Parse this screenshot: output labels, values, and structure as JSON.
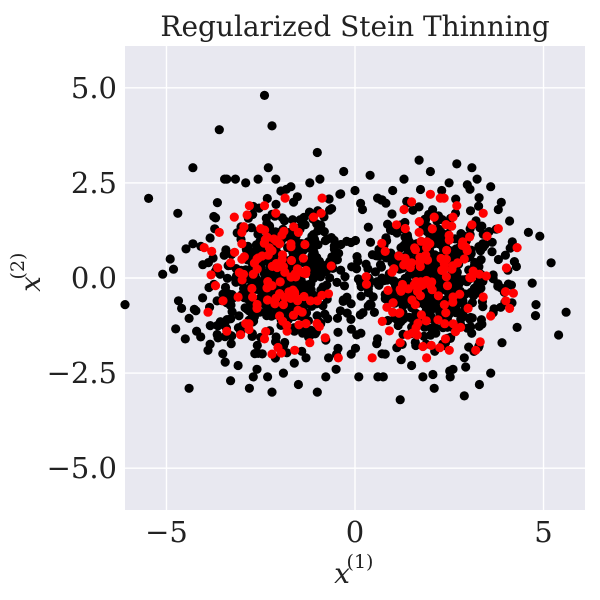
{
  "chart_data": {
    "type": "scatter",
    "title": "Regularized Stein Thinning",
    "xlabel": "x",
    "xlabel_sup": "(1)",
    "ylabel": "x",
    "ylabel_sup": "(2)",
    "xlim": [
      -6.1,
      6.1
    ],
    "ylim": [
      -6.1,
      6.1
    ],
    "xticks": [
      {
        "value": -5,
        "label": "−5"
      },
      {
        "value": 0,
        "label": "0"
      },
      {
        "value": 5,
        "label": "5"
      }
    ],
    "yticks": [
      {
        "value": 5.0,
        "label": "5.0"
      },
      {
        "value": 2.5,
        "label": "2.5"
      },
      {
        "value": 0.0,
        "label": "0.0"
      },
      {
        "value": -2.5,
        "label": "−2.5"
      },
      {
        "value": -5.0,
        "label": "−5.0"
      }
    ],
    "grid": true,
    "background_color": "#e8e8f0",
    "grid_color": "#ffffff",
    "series": [
      {
        "color": "#000000",
        "description_count": "approx 1100 samples",
        "points": [
          [
            -6.1,
            -0.7
          ],
          [
            -5.1,
            0.1
          ],
          [
            -4.9,
            0.5
          ],
          [
            -4.7,
            1.7
          ],
          [
            -4.6,
            -0.8
          ],
          [
            -4.5,
            -1.6
          ],
          [
            -4.4,
            -2.9
          ],
          [
            -4.3,
            2.9
          ],
          [
            -4.3,
            0.9
          ],
          [
            -4.2,
            -1.4
          ],
          [
            -3.9,
            -1.9
          ],
          [
            -3.6,
            3.9
          ],
          [
            -3.4,
            2.6
          ],
          [
            -3.3,
            -2.7
          ],
          [
            -3.1,
            -2.3
          ],
          [
            -2.9,
            2.5
          ],
          [
            -2.8,
            -2.9
          ],
          [
            -2.6,
            -2.4
          ],
          [
            -2.4,
            4.8
          ],
          [
            -2.3,
            2.9
          ],
          [
            -2.2,
            -3.0
          ],
          [
            -2.2,
            4.0
          ],
          [
            -2.1,
            2.6
          ],
          [
            -1.9,
            -2.5
          ],
          [
            -1.7,
            2.4
          ],
          [
            -1.5,
            -2.8
          ],
          [
            -1.3,
            -2.1
          ],
          [
            -1.2,
            2.5
          ],
          [
            -1.0,
            3.3
          ],
          [
            -1.0,
            -3.0
          ],
          [
            -0.7,
            -2.1
          ],
          [
            -0.5,
            -2.4
          ],
          [
            -0.4,
            2.2
          ],
          [
            -0.3,
            2.8
          ],
          [
            -0.1,
            -2.0
          ],
          [
            0.0,
            2.3
          ],
          [
            0.1,
            -2.6
          ],
          [
            0.2,
            1.8
          ],
          [
            0.4,
            2.7
          ],
          [
            0.6,
            2.1
          ],
          [
            0.6,
            -1.6
          ],
          [
            0.8,
            -2.0
          ],
          [
            1.0,
            2.3
          ],
          [
            1.2,
            -3.2
          ],
          [
            1.3,
            2.6
          ],
          [
            1.5,
            -2.3
          ],
          [
            1.7,
            3.1
          ],
          [
            1.8,
            -2.6
          ],
          [
            2.0,
            2.8
          ],
          [
            2.1,
            -2.9
          ],
          [
            2.3,
            2.3
          ],
          [
            2.6,
            -2.4
          ],
          [
            2.7,
            3.0
          ],
          [
            2.9,
            -3.1
          ],
          [
            3.1,
            2.9
          ],
          [
            3.3,
            -2.8
          ],
          [
            3.6,
            2.4
          ],
          [
            3.6,
            -2.5
          ],
          [
            3.8,
            1.8
          ],
          [
            3.9,
            -1.7
          ],
          [
            4.1,
            1.5
          ],
          [
            4.3,
            -1.3
          ],
          [
            4.6,
            1.2
          ],
          [
            4.8,
            -0.7
          ],
          [
            4.9,
            1.1
          ],
          [
            5.2,
            0.4
          ],
          [
            5.4,
            -1.5
          ],
          [
            5.6,
            -0.9
          ]
        ]
      },
      {
        "color": "#ff0000",
        "description_count": "approx 300 selected points",
        "points": [
          [
            -4.0,
            0.8
          ],
          [
            -3.9,
            -0.9
          ],
          [
            -3.8,
            0.7
          ],
          [
            -3.7,
            -0.2
          ],
          [
            -3.6,
            1.2
          ],
          [
            -3.4,
            -1.4
          ],
          [
            -3.3,
            0.4
          ],
          [
            -3.2,
            1.6
          ],
          [
            -3.1,
            -0.5
          ],
          [
            -3.0,
            0.9
          ],
          [
            -2.9,
            -1.2
          ],
          [
            -2.8,
            1.9
          ],
          [
            -2.7,
            0.1
          ],
          [
            -2.6,
            -0.8
          ],
          [
            -2.5,
            1.3
          ],
          [
            -2.4,
            -1.6
          ],
          [
            -2.3,
            0.6
          ],
          [
            -2.2,
            -0.2
          ],
          [
            -2.1,
            1.7
          ],
          [
            -2.0,
            -1.0
          ],
          [
            -1.9,
            0.3
          ],
          [
            -1.8,
            -1.4
          ],
          [
            -1.7,
            0.9
          ],
          [
            -1.6,
            -0.4
          ],
          [
            -1.5,
            1.2
          ],
          [
            -1.4,
            -0.9
          ],
          [
            -1.3,
            0.2
          ],
          [
            -1.2,
            -1.7
          ],
          [
            -1.1,
            1.6
          ],
          [
            -1.0,
            -0.6
          ],
          [
            -2.2,
            -2.0
          ],
          [
            -1.6,
            -1.9
          ],
          [
            -2.4,
            1.9
          ],
          [
            -3.0,
            1.2
          ],
          [
            -0.9,
            1.7
          ],
          [
            -2.6,
            0.5
          ],
          [
            -1.9,
            -0.7
          ],
          [
            -3.5,
            -0.6
          ],
          [
            -2.0,
            0.9
          ],
          [
            -1.3,
            -1.2
          ],
          [
            0.8,
            0.7
          ],
          [
            1.0,
            -0.9
          ],
          [
            1.1,
            1.4
          ],
          [
            1.2,
            -0.3
          ],
          [
            1.3,
            1.8
          ],
          [
            1.4,
            -1.5
          ],
          [
            1.5,
            0.4
          ],
          [
            1.6,
            -0.7
          ],
          [
            1.7,
            1.2
          ],
          [
            1.8,
            -1.8
          ],
          [
            1.9,
            0.8
          ],
          [
            2.0,
            -0.2
          ],
          [
            2.1,
            1.6
          ],
          [
            2.2,
            -1.1
          ],
          [
            2.3,
            0.2
          ],
          [
            2.4,
            -1.6
          ],
          [
            2.5,
            1.0
          ],
          [
            2.6,
            -0.5
          ],
          [
            2.7,
            1.9
          ],
          [
            2.8,
            -1.3
          ],
          [
            2.9,
            0.5
          ],
          [
            3.0,
            -0.8
          ],
          [
            3.1,
            1.4
          ],
          [
            3.2,
            -1.9
          ],
          [
            3.3,
            0.1
          ],
          [
            3.4,
            -0.5
          ],
          [
            3.5,
            1.1
          ],
          [
            3.6,
            -1.0
          ],
          [
            3.8,
            1.3
          ],
          [
            4.0,
            -0.6
          ],
          [
            4.2,
            -0.4
          ],
          [
            4.3,
            0.8
          ],
          [
            4.1,
            -0.8
          ],
          [
            1.9,
            -2.1
          ],
          [
            2.5,
            -1.9
          ],
          [
            1.5,
            2.0
          ],
          [
            2.0,
            2.2
          ],
          [
            3.4,
            1.7
          ],
          [
            1.2,
            -1.7
          ],
          [
            2.6,
            1.6
          ]
        ]
      }
    ]
  }
}
